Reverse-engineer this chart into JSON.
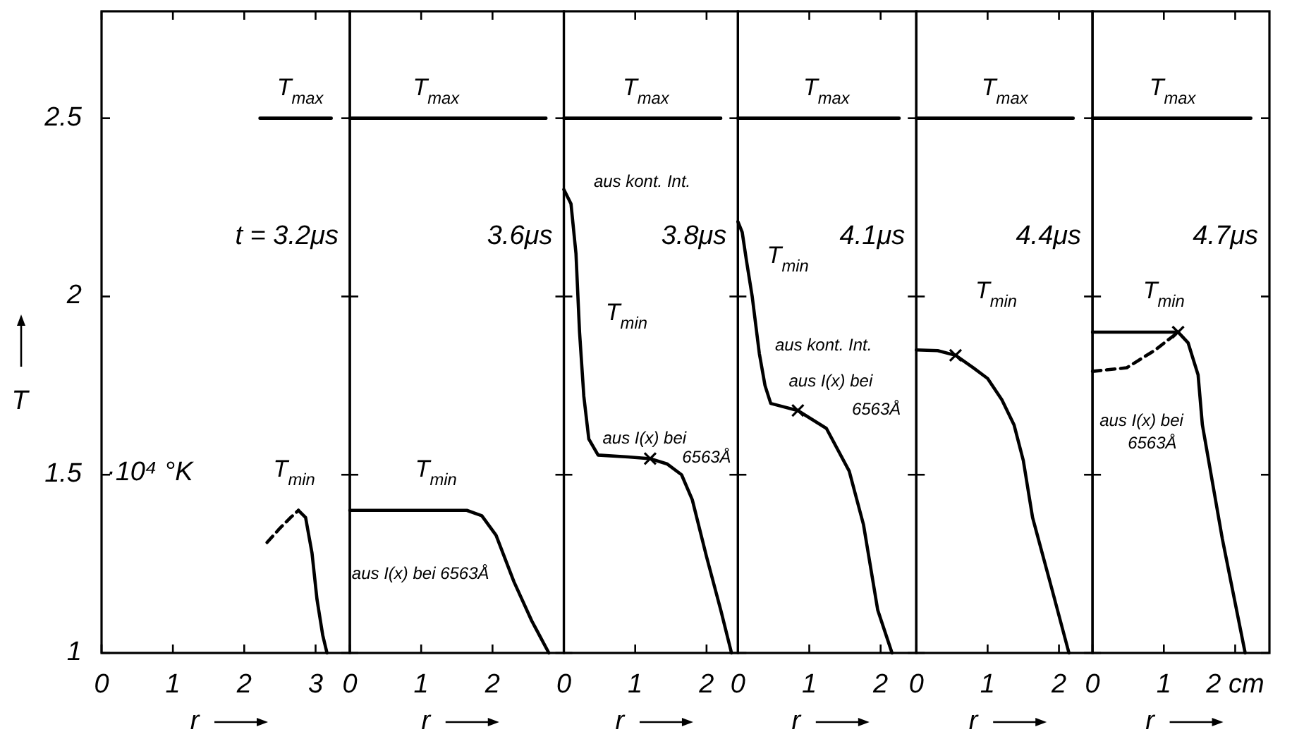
{
  "chart_data": [
    {
      "type": "line",
      "title": "t = 3.2μs",
      "xlabel": "r",
      "ylabel": "T",
      "xlim": [
        0,
        3.48
      ],
      "xticks": [
        0,
        1,
        2,
        3
      ],
      "ylim": [
        1,
        2.8
      ],
      "yticks": [
        1,
        1.5,
        2,
        2.5
      ],
      "series": [
        {
          "color": "#000000",
          "x": [
            2.22,
            3.22
          ],
          "values": [
            2.5,
            2.5
          ]
        },
        {
          "color": "#000000",
          "x": [
            2.76,
            2.86,
            2.95,
            3.02,
            3.1,
            3.16
          ],
          "values": [
            1.4,
            1.38,
            1.28,
            1.15,
            1.05,
            1.0
          ]
        },
        {
          "color": "#000000",
          "line_style": "dashed",
          "x": [
            2.32,
            2.5,
            2.65,
            2.76
          ],
          "values": [
            1.31,
            1.35,
            1.38,
            1.4
          ]
        }
      ],
      "annotations": [
        "T$_{max}$",
        "T$_{min}$",
        "·10⁴ °K"
      ]
    },
    {
      "type": "line",
      "title": "3.6μs",
      "xlabel": "r",
      "xlim": [
        0,
        3.0
      ],
      "xticks": [
        0,
        1,
        2
      ],
      "ylim": [
        1,
        2.8
      ],
      "yticks": [
        1,
        1.5,
        2,
        2.5
      ],
      "tick_labels": "x",
      "series": [
        {
          "color": "#000000",
          "x": [
            0,
            2.75
          ],
          "values": [
            2.5,
            2.5
          ]
        },
        {
          "color": "#000000",
          "x": [
            0,
            1.64,
            1.85,
            2.05,
            2.3,
            2.55,
            2.79
          ],
          "values": [
            1.4,
            1.4,
            1.385,
            1.33,
            1.2,
            1.09,
            1.0
          ]
        }
      ],
      "annotations": [
        "T$_{max}$",
        "T$_{min}$",
        "aus I(x) bei 6563Å"
      ]
    },
    {
      "type": "line",
      "title": "3.8μs",
      "xlabel": "r",
      "xlim": [
        0,
        2.44
      ],
      "xticks": [
        0,
        1,
        2
      ],
      "ylim": [
        1,
        2.8
      ],
      "yticks": [
        1,
        1.5,
        2,
        2.5
      ],
      "tick_labels": "x",
      "series": [
        {
          "color": "#000000",
          "x": [
            0,
            2.2
          ],
          "values": [
            2.5,
            2.5
          ]
        },
        {
          "color": "#000000",
          "x": [
            0,
            0.1,
            0.17,
            0.22,
            0.28,
            0.35,
            0.48,
            0.9,
            1.21,
            1.45,
            1.65,
            1.8,
            2.0,
            2.2,
            2.35
          ],
          "values": [
            2.3,
            2.26,
            2.12,
            1.9,
            1.72,
            1.6,
            1.555,
            1.55,
            1.545,
            1.53,
            1.5,
            1.43,
            1.27,
            1.12,
            1.0
          ]
        },
        {
          "type": "scatter",
          "marker": "cross",
          "color": "#000000",
          "x": [
            1.21
          ],
          "values": [
            1.545
          ]
        }
      ],
      "annotations": [
        "T$_{max}$",
        "T$_{min}$",
        "aus kont. Int.",
        "aus I(x) bei",
        "6563Å"
      ]
    },
    {
      "type": "line",
      "title": "4.1μs",
      "xlabel": "r",
      "xlim": [
        0,
        2.5
      ],
      "xticks": [
        0,
        1,
        2
      ],
      "ylim": [
        1,
        2.8
      ],
      "yticks": [
        1,
        1.5,
        2,
        2.5
      ],
      "tick_labels": "x",
      "series": [
        {
          "color": "#000000",
          "x": [
            0,
            2.26
          ],
          "values": [
            2.5,
            2.5
          ]
        },
        {
          "color": "#000000",
          "x": [
            0,
            0.06,
            0.12,
            0.2,
            0.3,
            0.38,
            0.46,
            0.84,
            1.24,
            1.56,
            1.76,
            1.96,
            2.16
          ],
          "values": [
            2.21,
            2.18,
            2.1,
            2.0,
            1.84,
            1.75,
            1.7,
            1.68,
            1.63,
            1.51,
            1.36,
            1.12,
            1.0
          ]
        },
        {
          "type": "scatter",
          "marker": "cross",
          "color": "#000000",
          "x": [
            0.84
          ],
          "values": [
            1.68
          ]
        }
      ],
      "annotations": [
        "T$_{max}$",
        "T$_{min}$",
        "aus kont. Int.",
        "aus I(x) bei",
        "6563Å"
      ]
    },
    {
      "type": "line",
      "title": "4.4μs",
      "xlabel": "r",
      "xlim": [
        0,
        2.47
      ],
      "xticks": [
        0,
        1,
        2
      ],
      "ylim": [
        1,
        2.8
      ],
      "yticks": [
        1,
        1.5,
        2,
        2.5
      ],
      "tick_labels": "x",
      "series": [
        {
          "color": "#000000",
          "x": [
            0,
            2.2
          ],
          "values": [
            2.5,
            2.5
          ]
        },
        {
          "color": "#000000",
          "x": [
            0,
            0.3,
            0.55,
            0.8,
            1.0,
            1.2,
            1.37,
            1.5,
            1.63,
            1.9,
            2.14
          ],
          "values": [
            1.85,
            1.848,
            1.835,
            1.8,
            1.77,
            1.71,
            1.64,
            1.54,
            1.38,
            1.18,
            1.0
          ]
        },
        {
          "type": "scatter",
          "marker": "cross",
          "color": "#000000",
          "x": [
            0.55
          ],
          "values": [
            1.835
          ]
        }
      ],
      "annotations": [
        "T$_{max}$",
        "T$_{min}$"
      ]
    },
    {
      "type": "line",
      "title": "4.7μs",
      "xlabel": "r",
      "xlim": [
        0,
        2.48
      ],
      "xticks": [
        0,
        1,
        {
          "value": 2,
          "label": "2 cm"
        }
      ],
      "ylim": [
        1,
        2.8
      ],
      "yticks": [
        1,
        1.5,
        2,
        2.5
      ],
      "tick_labels": "x",
      "series": [
        {
          "color": "#000000",
          "x": [
            0,
            2.22
          ],
          "values": [
            2.5,
            2.5
          ]
        },
        {
          "color": "#000000",
          "x": [
            0,
            1.2,
            1.34,
            1.48,
            1.54,
            1.82,
            2.14
          ],
          "values": [
            1.9,
            1.9,
            1.87,
            1.78,
            1.64,
            1.32,
            1.0
          ]
        },
        {
          "color": "#000000",
          "line_style": "dashed",
          "x": [
            0,
            0.48,
            0.88,
            1.2
          ],
          "values": [
            1.79,
            1.8,
            1.85,
            1.9
          ]
        },
        {
          "type": "scatter",
          "marker": "cross",
          "color": "#000000",
          "x": [
            1.2
          ],
          "values": [
            1.9
          ]
        }
      ],
      "annotations": [
        "T$_{max}$",
        "T$_{min}$",
        "aus I(x) bei 6563Å"
      ]
    }
  ]
}
